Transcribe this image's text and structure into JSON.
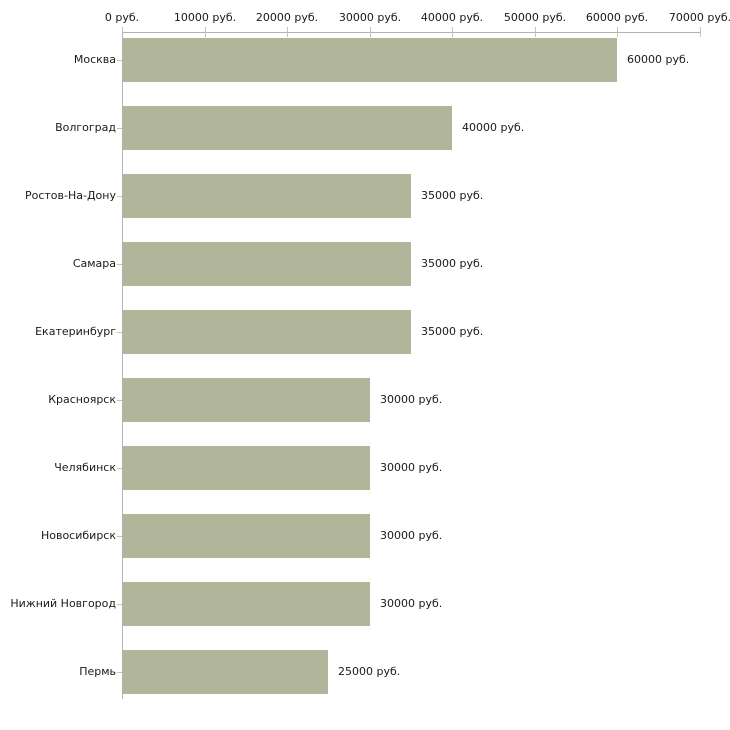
{
  "chart_data": {
    "type": "bar",
    "orientation": "horizontal",
    "title": "",
    "xlabel": "",
    "ylabel": "",
    "categories": [
      "Москва",
      "Волгоград",
      "Ростов-На-Дону",
      "Самара",
      "Екатеринбург",
      "Красноярск",
      "Челябинск",
      "Новосибирск",
      "Нижний Новгород",
      "Пермь"
    ],
    "values": [
      60000,
      40000,
      35000,
      35000,
      35000,
      30000,
      30000,
      30000,
      30000,
      25000
    ],
    "value_labels": [
      "60000 руб.",
      "40000 руб.",
      "35000 руб.",
      "35000 руб.",
      "35000 руб.",
      "30000 руб.",
      "30000 руб.",
      "30000 руб.",
      "30000 руб.",
      "25000 руб."
    ],
    "x_ticks": [
      0,
      10000,
      20000,
      30000,
      40000,
      50000,
      60000,
      70000
    ],
    "x_tick_labels": [
      "0 руб.",
      "10000 руб.",
      "20000 руб.",
      "30000 руб.",
      "40000 руб.",
      "50000 руб.",
      "60000 руб.",
      "70000 руб."
    ],
    "xlim": [
      0,
      70000
    ],
    "unit_suffix": " руб.",
    "grid": false,
    "legend": false,
    "colors": {
      "bar": "#b1b59a",
      "axis": "#b3b3b3",
      "tick": "#cbc896",
      "text": "#1a1a1a",
      "background": "#ffffff"
    }
  }
}
